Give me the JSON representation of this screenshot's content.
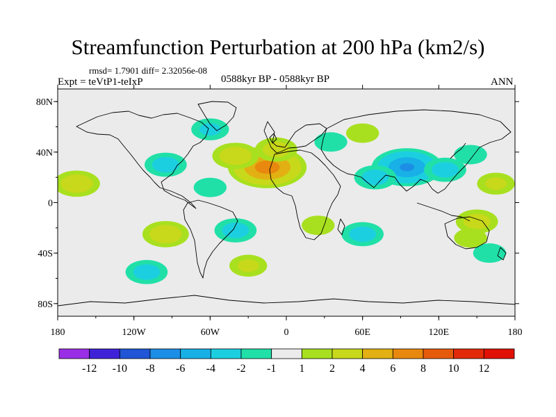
{
  "chart_data": {
    "type": "heatmap",
    "title": "Streamfunction Perturbation at 200 hPa (km2/s)",
    "subtitle_stats": "rmsd= 1.7901  diff= 2.32056e-08",
    "left_label": "Expt = teVtP1-teIxP",
    "center_label": "0588kyr BP - 0588kyr BP",
    "right_label": "ANN",
    "xlabel": "",
    "ylabel": "",
    "x_ticks": [
      "180",
      "120W",
      "60W",
      "0",
      "60E",
      "120E",
      "180"
    ],
    "y_ticks": [
      "80N",
      "40N",
      "0",
      "40S",
      "80S"
    ],
    "x_range": [
      -180,
      180
    ],
    "y_range": [
      -90,
      90
    ],
    "colorbar": {
      "levels": [
        "-12",
        "-10",
        "-8",
        "-6",
        "-4",
        "-2",
        "-1",
        "1",
        "2",
        "4",
        "6",
        "8",
        "10",
        "12"
      ],
      "colors": [
        "#9a2ee6",
        "#3f22d8",
        "#1f55d6",
        "#1c8ee6",
        "#18b0e6",
        "#1ccfe0",
        "#20e0a8",
        "#ebebeb",
        "#a8e01f",
        "#c8d81a",
        "#e2b012",
        "#e8880e",
        "#e65a0c",
        "#e22a0a",
        "#e01006"
      ]
    },
    "anomalies": [
      {
        "lon": -15,
        "lat": 28,
        "value": 7
      },
      {
        "lon": -40,
        "lat": 37,
        "value": 3
      },
      {
        "lon": -8,
        "lat": 42,
        "value": 2.5
      },
      {
        "lon": 95,
        "lat": 28,
        "value": -6
      },
      {
        "lon": 70,
        "lat": 20,
        "value": -2.5
      },
      {
        "lon": 125,
        "lat": 26,
        "value": -2.5
      },
      {
        "lon": -95,
        "lat": 30,
        "value": -2.5
      },
      {
        "lon": -60,
        "lat": 58,
        "value": -2
      },
      {
        "lon": -60,
        "lat": 12,
        "value": -1.5
      },
      {
        "lon": -95,
        "lat": -25,
        "value": 3
      },
      {
        "lon": -40,
        "lat": -22,
        "value": -2.5
      },
      {
        "lon": 60,
        "lat": -25,
        "value": -2.5
      },
      {
        "lon": 25,
        "lat": -18,
        "value": 1.5
      },
      {
        "lon": 35,
        "lat": 48,
        "value": -1.5
      },
      {
        "lon": 60,
        "lat": 55,
        "value": 1.5
      },
      {
        "lon": 150,
        "lat": -15,
        "value": 2.5
      },
      {
        "lon": 145,
        "lat": 38,
        "value": -1.5
      },
      {
        "lon": -165,
        "lat": 15,
        "value": 3
      },
      {
        "lon": 165,
        "lat": 15,
        "value": 2
      },
      {
        "lon": -110,
        "lat": -55,
        "value": -2.5
      },
      {
        "lon": -30,
        "lat": -50,
        "value": 2
      },
      {
        "lon": 145,
        "lat": -28,
        "value": 1.5
      },
      {
        "lon": 160,
        "lat": -40,
        "value": -1.5
      }
    ]
  }
}
